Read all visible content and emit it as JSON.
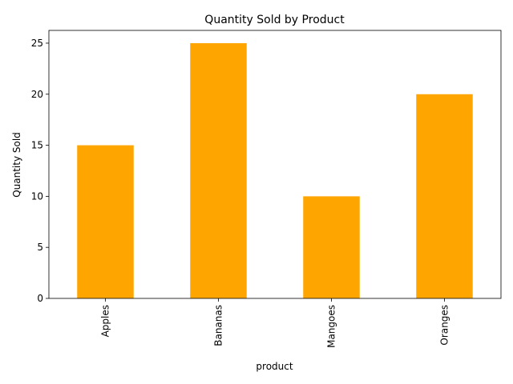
{
  "chart_data": {
    "type": "bar",
    "title": "Quantity Sold by Product",
    "xlabel": "product",
    "ylabel": "Quantity Sold",
    "categories": [
      "Apples",
      "Bananas",
      "Mangoes",
      "Oranges"
    ],
    "values": [
      15,
      25,
      10,
      20
    ],
    "ylim": [
      0,
      26.25
    ],
    "yticks": [
      0,
      5,
      10,
      15,
      20,
      25
    ],
    "bar_color": "#ffa500",
    "grid": false,
    "legend": "none"
  }
}
